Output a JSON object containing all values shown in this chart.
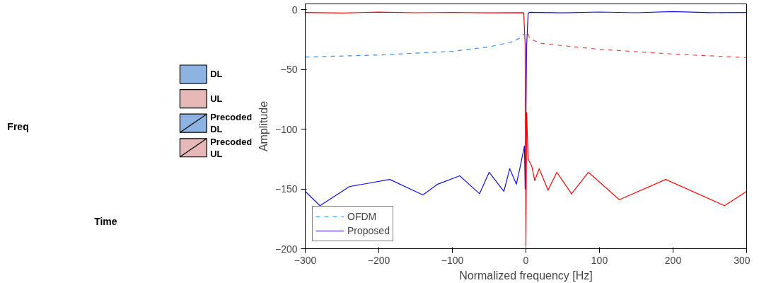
{
  "chart_data": [
    {
      "type": "other",
      "xlabel": "Time",
      "ylabel": "Freq",
      "legend": "right",
      "series": [
        {
          "name": "DL",
          "color": "#8db3e2"
        },
        {
          "name": "UL",
          "color": "#e6b9b8"
        },
        {
          "name": "Precoded DL",
          "color": "#8db3e2"
        },
        {
          "name": "Precoded UL",
          "color": "#e6b9b8"
        }
      ]
    },
    {
      "type": "line",
      "xlabel": "Normalized frequency [Hz]",
      "ylabel": "Amplitude",
      "xlim": [
        -300,
        300
      ],
      "ylim": [
        -200,
        5
      ],
      "xticks": [
        -300,
        -200,
        -100,
        0,
        100,
        200,
        300
      ],
      "yticks": [
        -200,
        -150,
        -100,
        -50,
        0
      ],
      "grid": false,
      "legend": "bottom left",
      "series": [
        {
          "name": "OFDM",
          "color": "#3c8ce6",
          "line_style": "dashed",
          "x": [
            -300,
            -200,
            -100,
            -50,
            -20,
            -5,
            -3
          ],
          "values": [
            -39.5,
            -37.8,
            -34.7,
            -31,
            -27,
            -22.7,
            -20
          ]
        },
        {
          "color": "#e84a4a",
          "line_style": "dashed",
          "x": [
            3,
            5,
            20,
            50,
            100,
            200,
            300
          ],
          "values": [
            -20,
            -24,
            -28,
            -30,
            -33,
            -37,
            -40
          ]
        },
        {
          "name": "Proposed",
          "color": "#1010e0",
          "line_style": "solid",
          "x": [
            -300,
            -280,
            -240,
            -185,
            -140,
            -120,
            -90,
            -63,
            -50,
            -30,
            -22,
            -13,
            -8,
            -2,
            -1,
            1,
            3,
            5,
            50,
            100,
            150,
            200,
            250,
            300
          ],
          "values": [
            -152,
            -164,
            -148,
            -142,
            -155,
            -146,
            -139,
            -154,
            -136,
            -152,
            -133,
            -146,
            -132,
            -114,
            -150,
            -30,
            -3,
            -2,
            -2.5,
            -1.8,
            -2.4,
            -1.5,
            -2.3,
            -2.2
          ]
        },
        {
          "color": "#ff0000",
          "line_style": "solid",
          "x": [
            -300,
            -250,
            -200,
            -150,
            -100,
            -50,
            -5,
            -3,
            -1,
            0,
            1,
            3,
            8,
            12,
            18,
            30,
            42,
            62,
            85,
            127,
            190,
            270,
            300
          ],
          "values": [
            -2.2,
            -2.6,
            -1.9,
            -2.4,
            -2.1,
            -2.5,
            -2.3,
            -2.5,
            -30,
            -198,
            -86,
            -125,
            -131,
            -143,
            -133,
            -151,
            -136,
            -154,
            -136,
            -159,
            -142,
            -164,
            -152
          ]
        }
      ]
    }
  ]
}
